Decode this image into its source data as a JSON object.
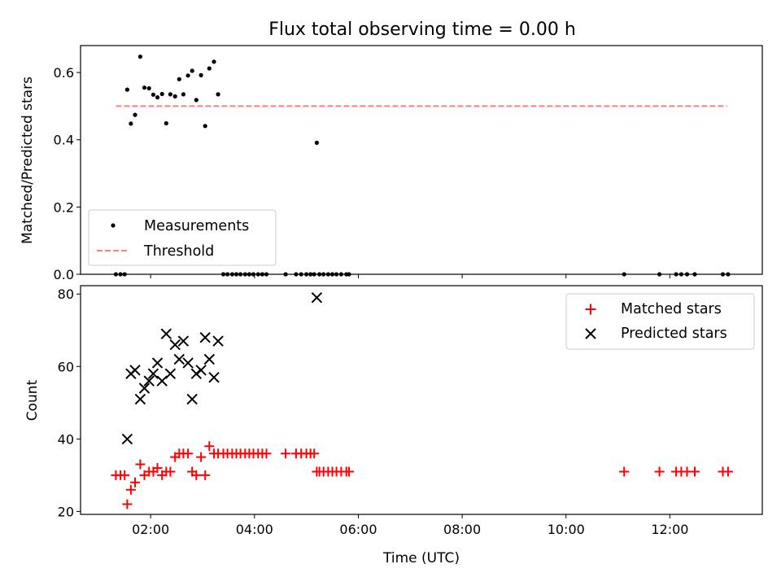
{
  "chart_data": [
    {
      "type": "scatter",
      "title": "Flux total observing time = 0.00 h",
      "xlabel": "",
      "ylabel": "Matched/Predicted stars",
      "xlim_hours": [
        0.65,
        13.78
      ],
      "ylim": [
        0.0,
        0.68
      ],
      "yticks": [
        0.0,
        0.2,
        0.4,
        0.6
      ],
      "ytick_labels": [
        "0.0",
        "0.2",
        "0.4",
        "0.6"
      ],
      "xticks_hours": [
        2,
        4,
        6,
        8,
        10,
        12
      ],
      "grid": false,
      "legend_position": "lower-left",
      "legend": [
        "Measurements",
        "Threshold"
      ],
      "threshold": {
        "name": "Threshold",
        "value": 0.5,
        "x_range_hours": [
          1.33,
          13.1
        ],
        "color": "#ff7f7f"
      },
      "series": [
        {
          "name": "Measurements",
          "marker": "dot",
          "color": "#000000",
          "points": [
            [
              1.55,
              0.549
            ],
            [
              1.62,
              0.448
            ],
            [
              1.7,
              0.474
            ],
            [
              1.8,
              0.647
            ],
            [
              1.88,
              0.555
            ],
            [
              1.97,
              0.553
            ],
            [
              2.05,
              0.534
            ],
            [
              2.13,
              0.526
            ],
            [
              2.22,
              0.536
            ],
            [
              2.3,
              0.449
            ],
            [
              2.38,
              0.535
            ],
            [
              2.47,
              0.529
            ],
            [
              2.55,
              0.58
            ],
            [
              2.63,
              0.535
            ],
            [
              2.72,
              0.591
            ],
            [
              2.8,
              0.605
            ],
            [
              2.88,
              0.518
            ],
            [
              2.97,
              0.592
            ],
            [
              3.05,
              0.441
            ],
            [
              3.13,
              0.612
            ],
            [
              3.22,
              0.632
            ],
            [
              3.3,
              0.535
            ],
            [
              5.2,
              0.391
            ],
            [
              1.33,
              0.0
            ],
            [
              1.42,
              0.0
            ],
            [
              1.5,
              0.0
            ],
            [
              3.4,
              0.0
            ],
            [
              3.48,
              0.0
            ],
            [
              3.57,
              0.0
            ],
            [
              3.65,
              0.0
            ],
            [
              3.73,
              0.0
            ],
            [
              3.82,
              0.0
            ],
            [
              3.9,
              0.0
            ],
            [
              3.98,
              0.0
            ],
            [
              4.07,
              0.0
            ],
            [
              4.15,
              0.0
            ],
            [
              4.23,
              0.0
            ],
            [
              4.6,
              0.0
            ],
            [
              4.8,
              0.0
            ],
            [
              4.9,
              0.0
            ],
            [
              5.0,
              0.0
            ],
            [
              5.08,
              0.0
            ],
            [
              5.15,
              0.0
            ],
            [
              5.25,
              0.0
            ],
            [
              5.33,
              0.0
            ],
            [
              5.42,
              0.0
            ],
            [
              5.5,
              0.0
            ],
            [
              5.58,
              0.0
            ],
            [
              5.67,
              0.0
            ],
            [
              5.77,
              0.0
            ],
            [
              5.82,
              0.0
            ],
            [
              11.12,
              0.0
            ],
            [
              11.8,
              0.0
            ],
            [
              12.12,
              0.0
            ],
            [
              12.22,
              0.0
            ],
            [
              12.33,
              0.0
            ],
            [
              12.48,
              0.0
            ],
            [
              13.02,
              0.0
            ],
            [
              13.12,
              0.0
            ]
          ]
        }
      ]
    },
    {
      "type": "scatter",
      "title": "",
      "xlabel": "Time (UTC)",
      "ylabel": "Count",
      "xlim_hours": [
        0.65,
        13.78
      ],
      "ylim": [
        19.2,
        82.3
      ],
      "yticks": [
        20,
        40,
        60,
        80
      ],
      "ytick_labels": [
        "20",
        "40",
        "60",
        "80"
      ],
      "xticks_hours": [
        2,
        4,
        6,
        8,
        10,
        12
      ],
      "xtick_labels": [
        "02:00",
        "04:00",
        "06:00",
        "08:00",
        "10:00",
        "12:00"
      ],
      "grid": false,
      "legend_position": "upper-right",
      "legend": [
        "Matched stars",
        "Predicted stars"
      ],
      "series": [
        {
          "name": "Matched stars",
          "marker": "plus",
          "color": "#ff0000",
          "points": [
            [
              1.33,
              30
            ],
            [
              1.42,
              30
            ],
            [
              1.5,
              30
            ],
            [
              1.55,
              22
            ],
            [
              1.62,
              26
            ],
            [
              1.7,
              28
            ],
            [
              1.8,
              33
            ],
            [
              1.88,
              30
            ],
            [
              1.97,
              31
            ],
            [
              2.05,
              31
            ],
            [
              2.13,
              32
            ],
            [
              2.22,
              30
            ],
            [
              2.3,
              31
            ],
            [
              2.38,
              31
            ],
            [
              2.47,
              35
            ],
            [
              2.55,
              36
            ],
            [
              2.63,
              36
            ],
            [
              2.72,
              36
            ],
            [
              2.8,
              31
            ],
            [
              2.88,
              30
            ],
            [
              2.97,
              35
            ],
            [
              3.05,
              30
            ],
            [
              3.13,
              38
            ],
            [
              3.22,
              36
            ],
            [
              3.3,
              36
            ],
            [
              3.4,
              36
            ],
            [
              3.48,
              36
            ],
            [
              3.57,
              36
            ],
            [
              3.65,
              36
            ],
            [
              3.73,
              36
            ],
            [
              3.82,
              36
            ],
            [
              3.9,
              36
            ],
            [
              3.98,
              36
            ],
            [
              4.07,
              36
            ],
            [
              4.15,
              36
            ],
            [
              4.23,
              36
            ],
            [
              4.6,
              36
            ],
            [
              4.8,
              36
            ],
            [
              4.9,
              36
            ],
            [
              5.0,
              36
            ],
            [
              5.08,
              36
            ],
            [
              5.15,
              36
            ],
            [
              5.2,
              31
            ],
            [
              5.25,
              31
            ],
            [
              5.33,
              31
            ],
            [
              5.42,
              31
            ],
            [
              5.5,
              31
            ],
            [
              5.58,
              31
            ],
            [
              5.67,
              31
            ],
            [
              5.77,
              31
            ],
            [
              5.82,
              31
            ],
            [
              11.12,
              31
            ],
            [
              11.8,
              31
            ],
            [
              12.12,
              31
            ],
            [
              12.22,
              31
            ],
            [
              12.33,
              31
            ],
            [
              12.48,
              31
            ],
            [
              13.02,
              31
            ],
            [
              13.12,
              31
            ]
          ]
        },
        {
          "name": "Predicted stars",
          "marker": "x",
          "color": "#000000",
          "points": [
            [
              1.55,
              40
            ],
            [
              1.62,
              58
            ],
            [
              1.7,
              59
            ],
            [
              1.8,
              51
            ],
            [
              1.88,
              54
            ],
            [
              1.97,
              56
            ],
            [
              2.05,
              58
            ],
            [
              2.13,
              61
            ],
            [
              2.22,
              56
            ],
            [
              2.3,
              69
            ],
            [
              2.38,
              58
            ],
            [
              2.47,
              66
            ],
            [
              2.55,
              62
            ],
            [
              2.63,
              67
            ],
            [
              2.72,
              61
            ],
            [
              2.8,
              51
            ],
            [
              2.88,
              58
            ],
            [
              2.97,
              59
            ],
            [
              3.05,
              68
            ],
            [
              3.13,
              62
            ],
            [
              3.22,
              57
            ],
            [
              3.3,
              67
            ],
            [
              5.2,
              79
            ]
          ]
        }
      ]
    }
  ]
}
